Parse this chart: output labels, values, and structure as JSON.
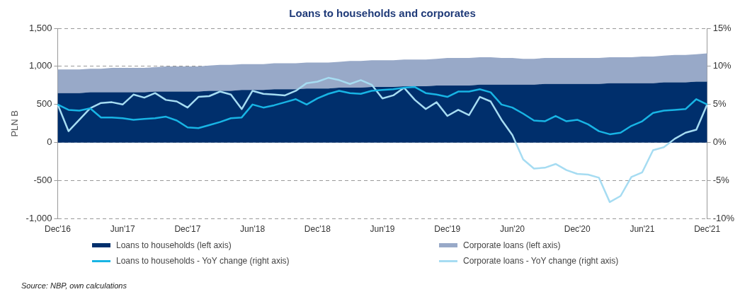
{
  "chart_data": {
    "type": "area",
    "title": "Loans to households and corporates",
    "ylabel": "PLN B",
    "categories": [
      "Dec'16",
      null,
      null,
      null,
      null,
      null,
      "Jun'17",
      null,
      null,
      null,
      null,
      null,
      "Dec'17",
      null,
      null,
      null,
      null,
      null,
      "Jun'18",
      null,
      null,
      null,
      null,
      null,
      "Dec'18",
      null,
      null,
      null,
      null,
      null,
      "Jun'19",
      null,
      null,
      null,
      null,
      null,
      "Dec'19",
      null,
      null,
      null,
      null,
      null,
      "Jun'20",
      null,
      null,
      null,
      null,
      null,
      "Dec'20",
      null,
      null,
      null,
      null,
      null,
      "Jun'21",
      null,
      null,
      null,
      null,
      null,
      "Dec'21"
    ],
    "stacked": true,
    "series": [
      {
        "name": "Loans to households (left axis)",
        "color": "#002f6c",
        "values": [
          650,
          650,
          650,
          660,
          660,
          660,
          660,
          660,
          660,
          670,
          670,
          670,
          670,
          670,
          680,
          680,
          680,
          690,
          690,
          690,
          700,
          700,
          700,
          710,
          710,
          710,
          720,
          720,
          720,
          730,
          730,
          730,
          740,
          740,
          740,
          750,
          750,
          750,
          750,
          760,
          760,
          760,
          760,
          760,
          760,
          770,
          770,
          770,
          770,
          770,
          770,
          780,
          780,
          780,
          780,
          780,
          790,
          790,
          790,
          800,
          800
        ]
      },
      {
        "name": "Corporate loans (left axis)",
        "color": "#98a9c8",
        "values": [
          310,
          310,
          310,
          310,
          310,
          320,
          320,
          320,
          320,
          320,
          330,
          330,
          330,
          330,
          330,
          340,
          340,
          340,
          340,
          340,
          340,
          340,
          340,
          340,
          340,
          340,
          340,
          350,
          350,
          350,
          350,
          350,
          350,
          350,
          350,
          350,
          360,
          360,
          360,
          360,
          360,
          350,
          350,
          340,
          340,
          340,
          340,
          340,
          340,
          340,
          340,
          340,
          340,
          340,
          350,
          350,
          350,
          360,
          360,
          360,
          370
        ]
      },
      {
        "name": "Loans to households - YoY change (right axis)",
        "type": "line",
        "axis": "y2",
        "color": "#18b4e4",
        "values": [
          5.0,
          4.3,
          4.2,
          4.5,
          3.3,
          3.3,
          3.2,
          3.0,
          3.1,
          3.2,
          3.4,
          2.9,
          2.0,
          1.9,
          2.3,
          2.7,
          3.2,
          3.3,
          5.0,
          4.6,
          4.9,
          5.3,
          5.7,
          5.0,
          5.8,
          6.4,
          6.8,
          6.5,
          6.4,
          6.8,
          6.9,
          7.0,
          7.2,
          7.3,
          6.5,
          6.3,
          6.0,
          6.7,
          6.7,
          7.0,
          6.6,
          5.0,
          4.6,
          3.8,
          2.9,
          2.8,
          3.5,
          2.8,
          3.0,
          2.4,
          1.5,
          1.1,
          1.3,
          2.2,
          2.8,
          3.9,
          4.2,
          4.3,
          4.4,
          5.7,
          5.0
        ]
      },
      {
        "name": "Corporate loans - YoY change (right axis)",
        "type": "line",
        "axis": "y2",
        "color": "#a6dcf2",
        "values": [
          5.0,
          1.5,
          3.0,
          4.5,
          5.2,
          5.3,
          5.0,
          6.3,
          5.9,
          6.5,
          5.6,
          5.4,
          4.6,
          6.0,
          6.1,
          6.7,
          6.3,
          4.4,
          6.8,
          6.4,
          6.3,
          6.2,
          6.8,
          7.8,
          8.0,
          8.5,
          8.2,
          7.7,
          8.2,
          7.6,
          5.8,
          6.2,
          7.2,
          5.6,
          4.4,
          5.3,
          3.5,
          4.3,
          3.6,
          6.0,
          5.4,
          3.0,
          1.0,
          -2.2,
          -3.4,
          -3.3,
          -2.8,
          -3.6,
          -4.1,
          -4.2,
          -4.6,
          -7.8,
          -7.0,
          -4.5,
          -3.9,
          -1.0,
          -0.6,
          0.5,
          1.3,
          1.7,
          5.0
        ]
      }
    ],
    "ylim": [
      -1000,
      1500
    ],
    "yticks": [
      {
        "value": -1000,
        "label": "-1,000"
      },
      -500,
      0,
      500,
      {
        "value": 1000,
        "label": "1,000"
      },
      {
        "value": 1500,
        "label": "1,500"
      }
    ],
    "y2lim": [
      -10,
      15
    ],
    "y2ticks": [
      {
        "value": -10,
        "label": "-10%"
      },
      {
        "value": -5,
        "label": "-5%"
      },
      {
        "value": 0,
        "label": "0%"
      },
      {
        "value": 5,
        "label": "5%"
      },
      {
        "value": 10,
        "label": "10%"
      },
      {
        "value": 15,
        "label": "15%"
      }
    ],
    "grid": "y",
    "legend": "bottom",
    "annotations": [
      "Source: NBP, own calculations"
    ]
  }
}
